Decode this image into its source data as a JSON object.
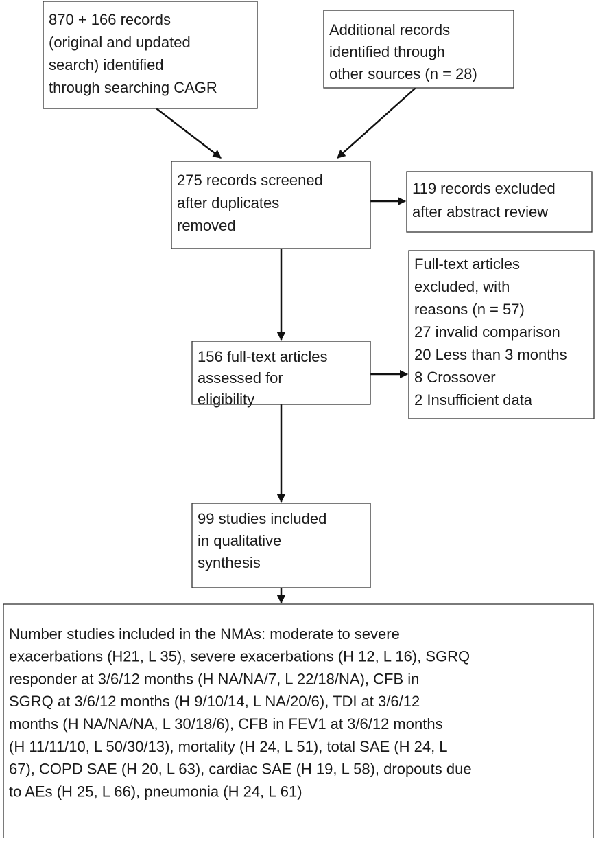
{
  "nodes": [
    {
      "lines": [
        "870 + 166 records",
        "(original and updated",
        "search) identified",
        "through searching CAGR"
      ]
    },
    {
      "lines": [
        "Additional records",
        "identified through",
        "other sources (n = 28)"
      ]
    },
    {
      "lines": [
        "275 records screened",
        "after duplicates",
        "removed"
      ]
    },
    {
      "lines": [
        "119 records excluded",
        "after abstract review"
      ]
    },
    {
      "lines": [
        "156 full-text articles",
        "assessed for",
        "eligibility"
      ]
    },
    {
      "lines": [
        "Full-text articles",
        "excluded, with",
        "reasons (n = 57)",
        "27 invalid comparison",
        "20 Less than 3 months",
        "8 Crossover",
        "2 Insufficient data"
      ]
    },
    {
      "lines": [
        "99 studies included",
        "in qualitative",
        "synthesis"
      ]
    },
    {
      "lines": [
        "Number studies included in the NMAs: moderate to severe",
        "exacerbations (H21, L 35), severe exacerbations (H 12, L 16), SGRQ",
        "responder at 3/6/12 months (H NA/NA/7,  L 22/18/NA), CFB in",
        "SGRQ at 3/6/12 months (H 9/10/14, L NA/20/6), TDI at 3/6/12",
        "months (H NA/NA/NA, L 30/18/6), CFB in FEV1 at 3/6/12 months",
        "(H 11/11/10, L 50/30/13), mortality (H 24, L 51), total SAE (H 24, L",
        "67), COPD SAE (H 20, L 63), cardiac SAE (H 19, L 58), dropouts due",
        "to AEs (H 25, L 66), pneumonia (H 24, L 61)"
      ]
    }
  ]
}
